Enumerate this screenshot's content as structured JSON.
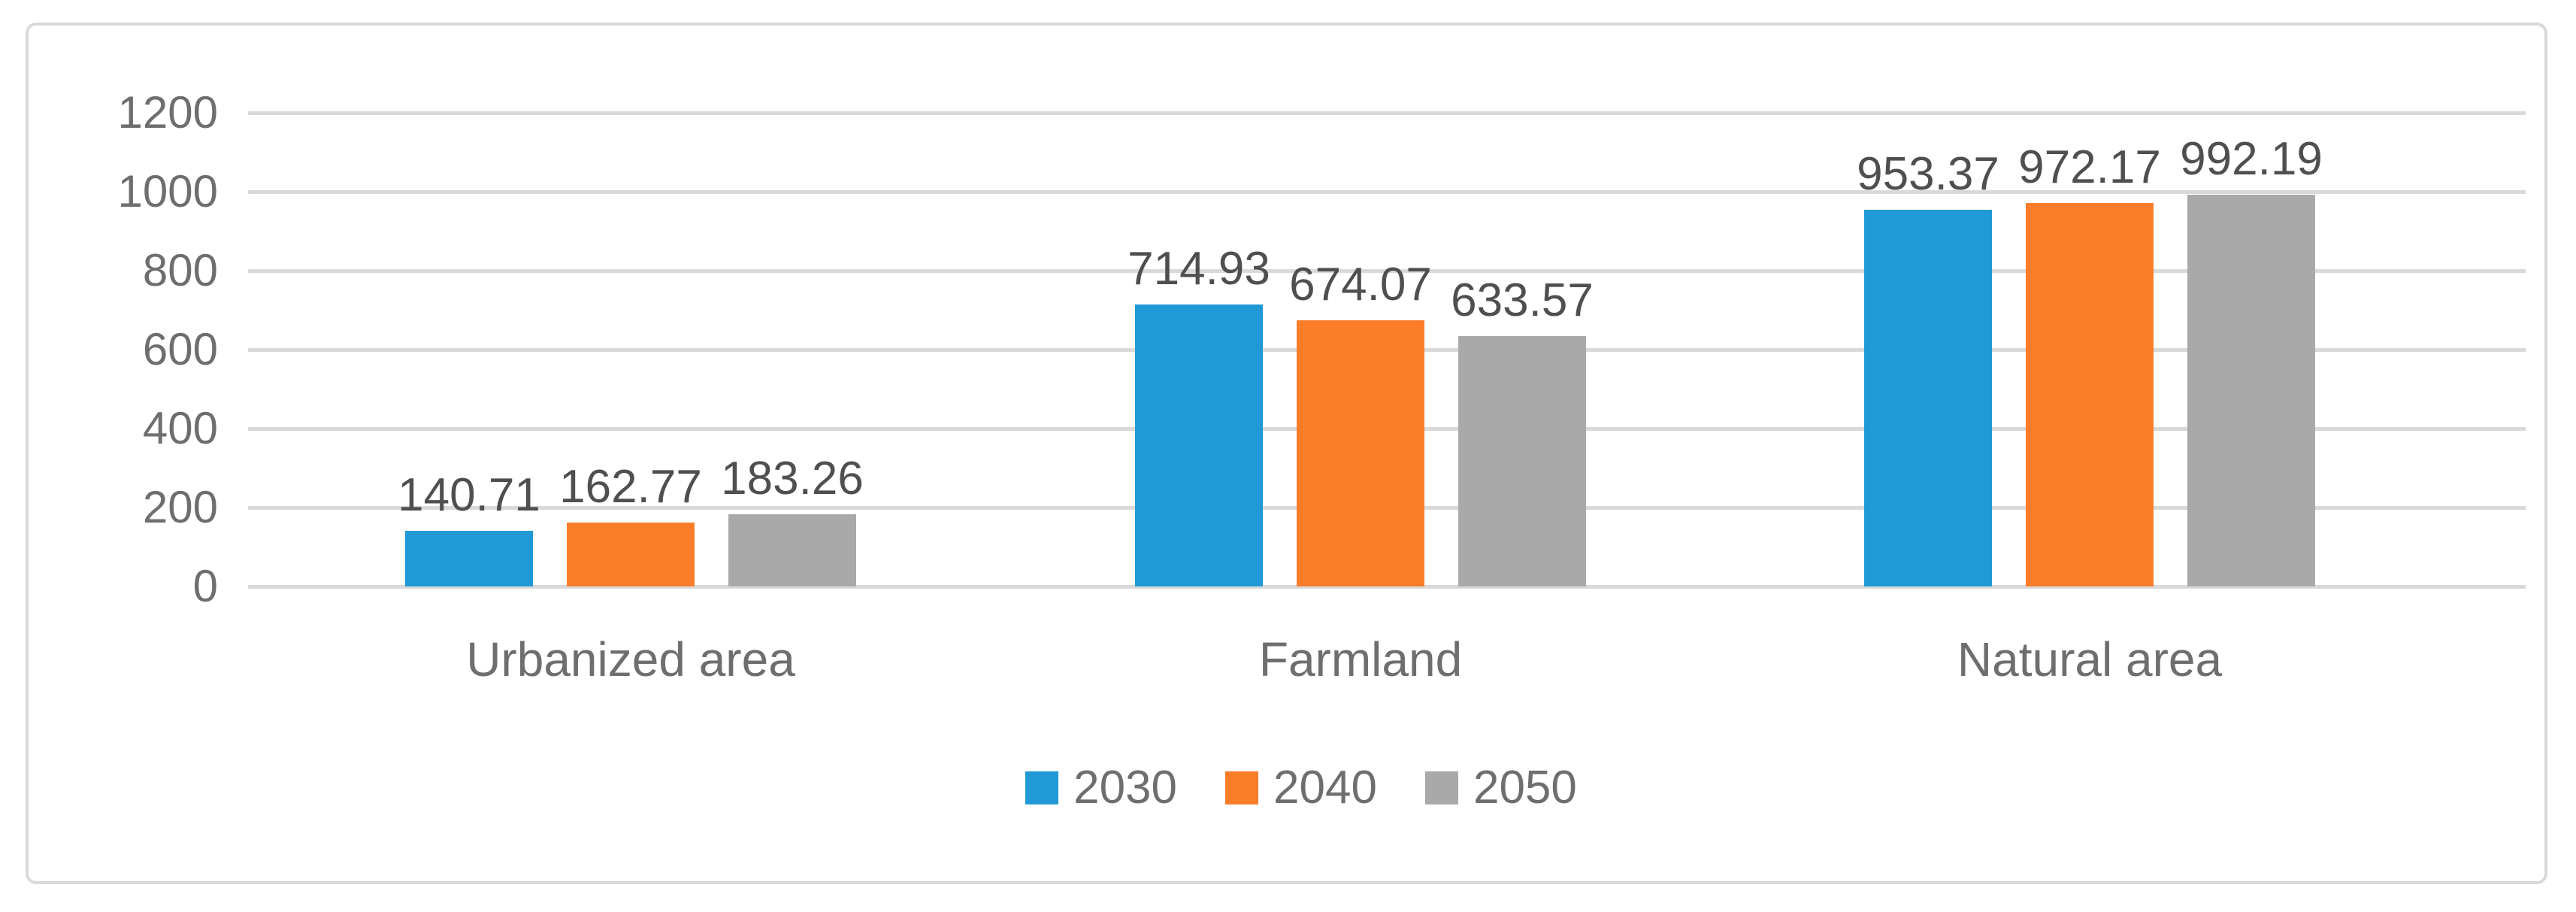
{
  "figure": {
    "background_color": "#ffffff",
    "border_color": "#d9d9d9",
    "gridline_color": "#d9d9d9",
    "tick_text_color": "#6e6e6e",
    "data_label_color": "#4f4f4f"
  },
  "chart_data": {
    "type": "bar",
    "title": "",
    "xlabel": "",
    "ylabel": "",
    "categories": [
      "Urbanized area",
      "Farmland",
      "Natural area"
    ],
    "series": [
      {
        "name": "2030",
        "color": "#2199d6",
        "values": [
          140.71,
          714.93,
          953.37
        ]
      },
      {
        "name": "2040",
        "color": "#fb7d2a",
        "values": [
          162.77,
          674.07,
          972.17
        ]
      },
      {
        "name": "2050",
        "color": "#a9a9a9",
        "values": [
          183.26,
          633.57,
          992.19
        ]
      }
    ],
    "data_labels": {
      "2030": [
        "140.71",
        "714.93",
        "953.37"
      ],
      "2040": [
        "162.77",
        "674.07",
        "972.17"
      ],
      "2050": [
        "183.26",
        "633.57",
        "992.19"
      ]
    },
    "y_ticks": [
      "0",
      "200",
      "400",
      "600",
      "800",
      "1000",
      "1200"
    ],
    "ylim": [
      0,
      1200
    ],
    "y_step": 200,
    "grid": "horizontal",
    "legend_position": "bottom",
    "legend_entries": [
      "2030",
      "2040",
      "2050"
    ]
  }
}
